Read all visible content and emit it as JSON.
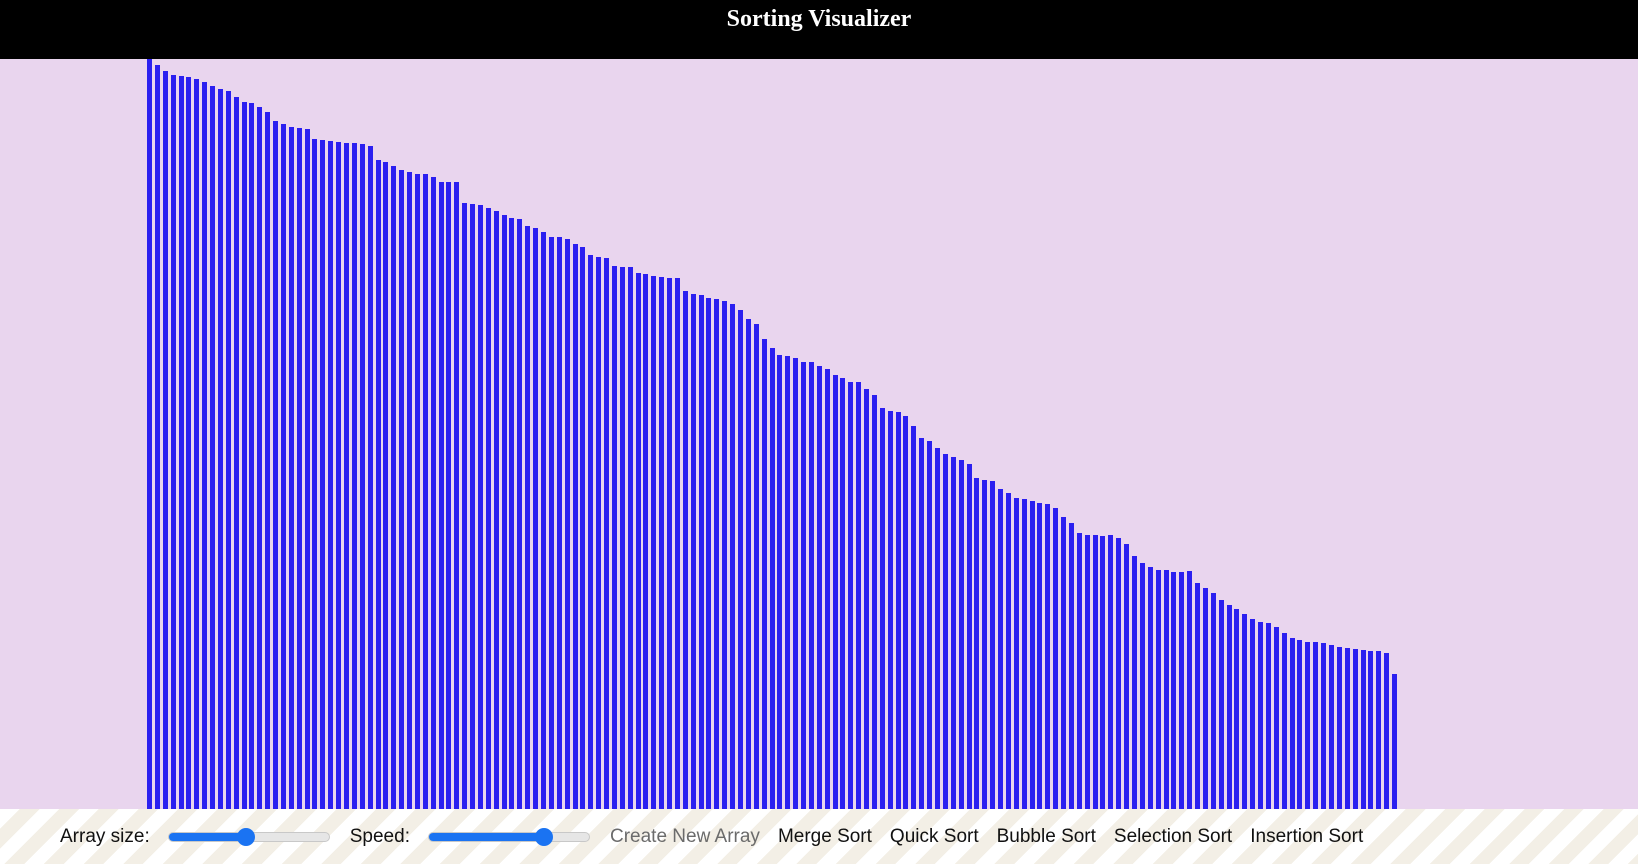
{
  "header": {
    "title": "Sorting Visualizer"
  },
  "colors": {
    "header_bg": "#000000",
    "canvas_bg": "#e9d5ee",
    "bar": "#2b1ff0",
    "slider": "#1a73f2"
  },
  "chart_data": {
    "type": "bar",
    "values": [
      750,
      744,
      738,
      734,
      733,
      732,
      730,
      727,
      723,
      720,
      718,
      712,
      707,
      706,
      702,
      697,
      688,
      685,
      682,
      681,
      680,
      670,
      669,
      668,
      667,
      666,
      666,
      665,
      663,
      649,
      647,
      643,
      639,
      637,
      635,
      635,
      632,
      627,
      627,
      627,
      606,
      605,
      604,
      601,
      598,
      594,
      591,
      590,
      583,
      581,
      577,
      572,
      572,
      570,
      565,
      562,
      554,
      552,
      551,
      543,
      542,
      542,
      536,
      535,
      533,
      532,
      531,
      531,
      518,
      515,
      514,
      511,
      510,
      508,
      505,
      499,
      490,
      485,
      470,
      461,
      454,
      453,
      451,
      447,
      447,
      443,
      440,
      434,
      431,
      427,
      427,
      420,
      414,
      401,
      398,
      397,
      393,
      383,
      371,
      368,
      361,
      355,
      352,
      349,
      345,
      331,
      329,
      328,
      320,
      316,
      311,
      310,
      308,
      306,
      305,
      301,
      292,
      286,
      276,
      274,
      274,
      273,
      274,
      271,
      265,
      253,
      246,
      242,
      239,
      239,
      237,
      237,
      238,
      226,
      221,
      216,
      209,
      204,
      200,
      195,
      190,
      187,
      186,
      182,
      176,
      171,
      169,
      167,
      167,
      166,
      164,
      162,
      161,
      160,
      159,
      158,
      158,
      156,
      135
    ],
    "ylim": [
      0,
      750
    ]
  },
  "controls": {
    "array_size_label": "Array size:",
    "array_size_value": 0.48,
    "speed_label": "Speed:",
    "speed_value": 0.72,
    "create_label": "Create New Array",
    "merge_label": "Merge Sort",
    "quick_label": "Quick Sort",
    "bubble_label": "Bubble Sort",
    "selection_label": "Selection Sort",
    "insertion_label": "Insertion Sort"
  }
}
